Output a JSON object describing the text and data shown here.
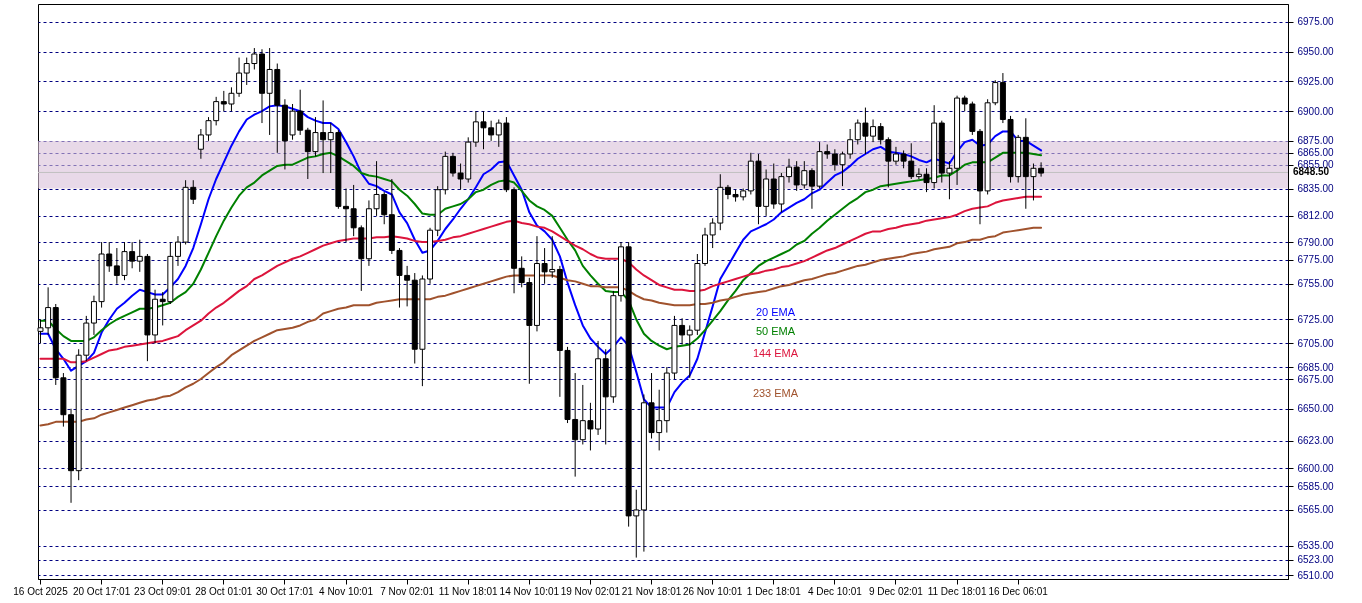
{
  "chart_data": {
    "type": "candlestick",
    "color": "#000000",
    "categories": [
      "16 Oct 2025",
      null,
      null,
      null,
      null,
      null,
      null,
      null,
      "20 Oct 17:01",
      null,
      null,
      null,
      null,
      null,
      null,
      null,
      "23 Oct 09:01",
      null,
      null,
      null,
      null,
      null,
      null,
      null,
      "28 Oct 01:01",
      null,
      null,
      null,
      null,
      null,
      null,
      null,
      "30 Oct 17:01",
      null,
      null,
      null,
      null,
      null,
      null,
      null,
      "4 Nov 10:01",
      null,
      null,
      null,
      null,
      null,
      null,
      null,
      "7 Nov 02:01",
      null,
      null,
      null,
      null,
      null,
      null,
      null,
      "11 Nov 18:01",
      null,
      null,
      null,
      null,
      null,
      null,
      null,
      "14 Nov 10:01",
      null,
      null,
      null,
      null,
      null,
      null,
      null,
      "19 Nov 02:01",
      null,
      null,
      null,
      null,
      null,
      null,
      null,
      "21 Nov 18:01",
      null,
      null,
      null,
      null,
      null,
      null,
      null,
      "26 Nov 10:01",
      null,
      null,
      null,
      null,
      null,
      null,
      null,
      "1 Dec 18:01",
      null,
      null,
      null,
      null,
      null,
      null,
      null,
      "4 Dec 10:01",
      null,
      null,
      null,
      null,
      null,
      null,
      null,
      "9 Dec 02:01",
      null,
      null,
      null,
      null,
      null,
      null,
      null,
      "11 Dec 18:01",
      null,
      null,
      null,
      null,
      null,
      null,
      null,
      "16 Dec 06:01",
      null,
      null,
      null,
      null,
      null,
      null,
      null,
      null,
      null,
      null,
      null,
      null,
      null,
      null,
      null,
      null,
      null,
      null,
      null,
      null,
      null,
      null,
      null,
      null,
      null,
      null,
      null,
      null,
      null,
      null,
      null,
      null,
      null,
      null,
      null
    ],
    "ohlc": [
      [
        6715,
        6725,
        6705,
        6718
      ],
      [
        6718,
        6752,
        6712,
        6735
      ],
      [
        6735,
        6738,
        6670,
        6676
      ],
      [
        6676,
        6680,
        6635,
        6645
      ],
      [
        6645,
        6650,
        6571,
        6598
      ],
      [
        6598,
        6700,
        6590,
        6695
      ],
      [
        6695,
        6728,
        6690,
        6722
      ],
      [
        6722,
        6745,
        6712,
        6740
      ],
      [
        6740,
        6790,
        6735,
        6780
      ],
      [
        6780,
        6790,
        6765,
        6770
      ],
      [
        6770,
        6785,
        6755,
        6762
      ],
      [
        6762,
        6790,
        6758,
        6782
      ],
      [
        6782,
        6790,
        6768,
        6774
      ],
      [
        6774,
        6792,
        6765,
        6778
      ],
      [
        6778,
        6780,
        6690,
        6712
      ],
      [
        6712,
        6750,
        6705,
        6742
      ],
      [
        6742,
        6748,
        6720,
        6740
      ],
      [
        6740,
        6790,
        6738,
        6778
      ],
      [
        6778,
        6795,
        6770,
        6790
      ],
      [
        6790,
        6842,
        6788,
        6836
      ],
      [
        6836,
        6842,
        6822,
        6826
      ],
      [
        6868,
        6885,
        6860,
        6880
      ],
      [
        6880,
        6895,
        6875,
        6892
      ],
      [
        6892,
        6912,
        6888,
        6908
      ],
      [
        6908,
        6917,
        6900,
        6906
      ],
      [
        6906,
        6920,
        6900,
        6915
      ],
      [
        6915,
        6945,
        6912,
        6932
      ],
      [
        6932,
        6945,
        6922,
        6940
      ],
      [
        6940,
        6953,
        6935,
        6948
      ],
      [
        6948,
        6952,
        6890,
        6915
      ],
      [
        6915,
        6953,
        6880,
        6935
      ],
      [
        6935,
        6940,
        6865,
        6905
      ],
      [
        6905,
        6910,
        6851,
        6875
      ],
      [
        6880,
        6906,
        6876,
        6900
      ],
      [
        6900,
        6918,
        6880,
        6884
      ],
      [
        6884,
        6886,
        6843,
        6866
      ],
      [
        6866,
        6895,
        6862,
        6882
      ],
      [
        6882,
        6909,
        6848,
        6876
      ],
      [
        6876,
        6890,
        6848,
        6882
      ],
      [
        6882,
        6884,
        6818,
        6820
      ],
      [
        6820,
        6835,
        6790,
        6818
      ],
      [
        6818,
        6838,
        6795,
        6802
      ],
      [
        6802,
        6804,
        6749,
        6776
      ],
      [
        6776,
        6825,
        6770,
        6818
      ],
      [
        6818,
        6858,
        6812,
        6830
      ],
      [
        6830,
        6832,
        6805,
        6813
      ],
      [
        6813,
        6843,
        6780,
        6783
      ],
      [
        6783,
        6785,
        6735,
        6762
      ],
      [
        6762,
        6770,
        6736,
        6758
      ],
      [
        6758,
        6764,
        6688,
        6700
      ],
      [
        6700,
        6762,
        6669,
        6759
      ],
      [
        6759,
        6802,
        6755,
        6800
      ],
      [
        6800,
        6837,
        6795,
        6834
      ],
      [
        6834,
        6866,
        6830,
        6862
      ],
      [
        6862,
        6865,
        6845,
        6848
      ],
      [
        6848,
        6856,
        6834,
        6843
      ],
      [
        6843,
        6878,
        6840,
        6874
      ],
      [
        6874,
        6900,
        6870,
        6891
      ],
      [
        6891,
        6900,
        6868,
        6886
      ],
      [
        6886,
        6892,
        6875,
        6880
      ],
      [
        6880,
        6893,
        6870,
        6890
      ],
      [
        6890,
        6895,
        6832,
        6834
      ],
      [
        6834,
        6836,
        6747,
        6768
      ],
      [
        6768,
        6778,
        6752,
        6756
      ],
      [
        6756,
        6760,
        6671,
        6720
      ],
      [
        6720,
        6795,
        6715,
        6772
      ],
      [
        6772,
        6785,
        6755,
        6765
      ],
      [
        6765,
        6795,
        6760,
        6767
      ],
      [
        6767,
        6770,
        6660,
        6699
      ],
      [
        6699,
        6702,
        6638,
        6641
      ],
      [
        6641,
        6680,
        6593,
        6624
      ],
      [
        6624,
        6670,
        6620,
        6640
      ],
      [
        6640,
        6655,
        6615,
        6633
      ],
      [
        6633,
        6707,
        6628,
        6692
      ],
      [
        6692,
        6700,
        6620,
        6660
      ],
      [
        6660,
        6749,
        6655,
        6745
      ],
      [
        6745,
        6790,
        6740,
        6786
      ],
      [
        6786,
        6790,
        6551,
        6560
      ],
      [
        6560,
        6582,
        6525,
        6565
      ],
      [
        6565,
        6662,
        6530,
        6655
      ],
      [
        6655,
        6680,
        6625,
        6630
      ],
      [
        6630,
        6666,
        6615,
        6640
      ],
      [
        6640,
        6685,
        6630,
        6680
      ],
      [
        6680,
        6728,
        6675,
        6720
      ],
      [
        6720,
        6726,
        6704,
        6712
      ],
      [
        6712,
        6720,
        6676,
        6716
      ],
      [
        6716,
        6780,
        6712,
        6772
      ],
      [
        6772,
        6802,
        6770,
        6796
      ],
      [
        6796,
        6810,
        6785,
        6806
      ],
      [
        6806,
        6847,
        6800,
        6836
      ],
      [
        6836,
        6838,
        6826,
        6830
      ],
      [
        6830,
        6834,
        6824,
        6828
      ],
      [
        6828,
        6835,
        6825,
        6833
      ],
      [
        6833,
        6865,
        6830,
        6858
      ],
      [
        6858,
        6864,
        6805,
        6820
      ],
      [
        6820,
        6851,
        6812,
        6843
      ],
      [
        6843,
        6856,
        6818,
        6822
      ],
      [
        6822,
        6848,
        6815,
        6845
      ],
      [
        6845,
        6860,
        6840,
        6853
      ],
      [
        6853,
        6858,
        6833,
        6838
      ],
      [
        6838,
        6858,
        6835,
        6850
      ],
      [
        6850,
        6852,
        6818,
        6837
      ],
      [
        6837,
        6874,
        6835,
        6866
      ],
      [
        6866,
        6872,
        6860,
        6864
      ],
      [
        6864,
        6868,
        6850,
        6855
      ],
      [
        6855,
        6866,
        6837,
        6864
      ],
      [
        6864,
        6885,
        6860,
        6876
      ],
      [
        6876,
        6893,
        6872,
        6890
      ],
      [
        6890,
        6903,
        6864,
        6879
      ],
      [
        6879,
        6893,
        6874,
        6887
      ],
      [
        6887,
        6890,
        6872,
        6876
      ],
      [
        6876,
        6878,
        6836,
        6858
      ],
      [
        6858,
        6870,
        6855,
        6864
      ],
      [
        6864,
        6867,
        6852,
        6858
      ],
      [
        6858,
        6873,
        6843,
        6845
      ],
      [
        6845,
        6852,
        6843,
        6847
      ],
      [
        6847,
        6852,
        6832,
        6840
      ],
      [
        6840,
        6905,
        6835,
        6890
      ],
      [
        6890,
        6892,
        6840,
        6848
      ],
      [
        6848,
        6858,
        6826,
        6852
      ],
      [
        6852,
        6913,
        6838,
        6911
      ],
      [
        6911,
        6913,
        6900,
        6906
      ],
      [
        6906,
        6908,
        6880,
        6883
      ],
      [
        6883,
        6885,
        6805,
        6833
      ],
      [
        6833,
        6910,
        6830,
        6907
      ],
      [
        6907,
        6926,
        6905,
        6924
      ],
      [
        6924,
        6932,
        6890,
        6893
      ],
      [
        6893,
        6896,
        6840,
        6845
      ],
      [
        6845,
        6880,
        6840,
        6878
      ],
      [
        6878,
        6894,
        6818,
        6845
      ],
      [
        6845,
        6856,
        6825,
        6852
      ],
      [
        6852,
        6857,
        6845,
        6848
      ],
      null,
      null,
      null,
      null,
      null,
      null,
      null,
      null,
      null,
      null,
      null,
      null,
      null,
      null,
      null,
      null,
      null,
      null,
      null,
      null,
      null,
      null,
      null,
      null,
      null,
      null,
      null,
      null,
      null,
      null,
      null,
      null
    ],
    "series": [
      {
        "name": "20 EMA",
        "type": "line",
        "color": "#0000ff",
        "values": [
          6713,
          6713,
          6700,
          6692,
          6682,
          6686,
          6690,
          6697,
          6714,
          6725,
          6734,
          6739,
          6745,
          6750,
          6748,
          6746,
          6746,
          6752,
          6759,
          6770,
          6785,
          6805,
          6826,
          6843,
          6857,
          6871,
          6883,
          6893,
          6897,
          6900,
          6904,
          6905,
          6904,
          6902,
          6900,
          6895,
          6892,
          6890,
          6890,
          6885,
          6874,
          6862,
          6848,
          6839,
          6837,
          6833,
          6830,
          6815,
          6806,
          6792,
          6781,
          6783,
          6791,
          6801,
          6809,
          6818,
          6826,
          6836,
          6847,
          6851,
          6857,
          6858,
          6846,
          6834,
          6815,
          6804,
          6799,
          6792,
          6778,
          6756,
          6737,
          6720,
          6709,
          6702,
          6696,
          6702,
          6710,
          6703,
          6681,
          6658,
          6651,
          6651,
          6651,
          6664,
          6672,
          6678,
          6692,
          6714,
          6736,
          6759,
          6770,
          6781,
          6792,
          6799,
          6802,
          6805,
          6809,
          6815,
          6819,
          6823,
          6826,
          6831,
          6834,
          6840,
          6846,
          6849,
          6854,
          6860,
          6864,
          6868,
          6870,
          6866,
          6865,
          6864,
          6862,
          6859,
          6857,
          6860,
          6858,
          6856,
          6866,
          6874,
          6876,
          6871,
          6872,
          6879,
          6883,
          6883,
          6875,
          6875,
          6871,
          6867,
          null,
          null,
          null,
          null,
          null,
          null,
          null,
          null,
          null,
          null,
          null,
          null,
          null,
          null,
          null,
          null,
          null,
          null,
          null,
          null,
          null,
          null,
          null,
          null,
          null,
          null,
          null,
          null,
          null,
          null,
          null,
          null
        ]
      },
      {
        "name": "50 EMA",
        "type": "line",
        "color": "#008000",
        "values": [
          6724,
          6724,
          6717,
          6711,
          6707,
          6707,
          6707,
          6710,
          6716,
          6721,
          6725,
          6728,
          6731,
          6734,
          6734,
          6735,
          6737,
          6739,
          6744,
          6748,
          6755,
          6767,
          6781,
          6795,
          6808,
          6819,
          6829,
          6836,
          6840,
          6846,
          6850,
          6854,
          6855,
          6855,
          6858,
          6861,
          6862,
          6864,
          6865,
          6862,
          6858,
          6854,
          6848,
          6846,
          6845,
          6843,
          6841,
          6834,
          6829,
          6822,
          6814,
          6813,
          6813,
          6818,
          6820,
          6822,
          6826,
          6832,
          6834,
          6838,
          6841,
          6842,
          6840,
          6833,
          6825,
          6820,
          6817,
          6812,
          6802,
          6792,
          6783,
          6770,
          6762,
          6755,
          6749,
          6748,
          6748,
          6741,
          6725,
          6713,
          6707,
          6703,
          6700,
          6702,
          6703,
          6704,
          6709,
          6716,
          6724,
          6732,
          6741,
          6749,
          6758,
          6764,
          6770,
          6774,
          6777,
          6780,
          6783,
          6788,
          6791,
          6797,
          6802,
          6808,
          6813,
          6818,
          6823,
          6827,
          6832,
          6834,
          6837,
          6838,
          6839,
          6840,
          6841,
          6842,
          6843,
          6844,
          6846,
          6846,
          6850,
          6855,
          6857,
          6857,
          6857,
          6861,
          6865,
          6865,
          6865,
          6865,
          6864,
          6863,
          null,
          null,
          null,
          null,
          null,
          null,
          null,
          null,
          null,
          null,
          null,
          null,
          null,
          null,
          null,
          null,
          null,
          null,
          null,
          null,
          null,
          null,
          null,
          null,
          null,
          null,
          null,
          null,
          null,
          null,
          null,
          null
        ]
      },
      {
        "name": "144 EMA",
        "type": "line",
        "color": "#dc143c",
        "values": [
          6692,
          6692,
          6692,
          6692,
          6689,
          6689,
          6690,
          6693,
          6696,
          6699,
          6700,
          6702,
          6703,
          6704,
          6705,
          6706,
          6707,
          6709,
          6711,
          6716,
          6720,
          6724,
          6730,
          6735,
          6739,
          6744,
          6749,
          6753,
          6759,
          6762,
          6766,
          6770,
          6773,
          6776,
          6778,
          6781,
          6784,
          6787,
          6789,
          6791,
          6792,
          6793,
          6793,
          6793,
          6794,
          6794,
          6795,
          6794,
          6793,
          6791,
          6790,
          6790,
          6791,
          6792,
          6794,
          6795,
          6797,
          6799,
          6801,
          6803,
          6805,
          6807,
          6808,
          6806,
          6805,
          6803,
          6802,
          6799,
          6795,
          6791,
          6787,
          6784,
          6780,
          6777,
          6776,
          6776,
          6776,
          6773,
          6767,
          6762,
          6758,
          6754,
          6752,
          6750,
          6750,
          6749,
          6749,
          6750,
          6753,
          6755,
          6757,
          6759,
          6761,
          6763,
          6764,
          6766,
          6767,
          6769,
          6770,
          6772,
          6774,
          6777,
          6780,
          6783,
          6785,
          6788,
          6791,
          6794,
          6797,
          6799,
          6799,
          6801,
          6802,
          6804,
          6805,
          6806,
          6808,
          6809,
          6810,
          6811,
          6813,
          6816,
          6818,
          6819,
          6820,
          6823,
          6825,
          6826,
          6827,
          6828,
          6828,
          6828,
          null,
          null,
          null,
          null,
          null,
          null,
          null,
          null,
          null,
          null,
          null,
          null,
          null,
          null,
          null,
          null,
          null,
          null,
          null,
          null,
          null,
          null,
          null,
          null,
          null,
          null,
          null,
          null,
          null,
          null,
          null,
          null
        ]
      },
      {
        "name": "233 EMA",
        "type": "line",
        "color": "#a0522d",
        "values": [
          6636,
          6637,
          6639,
          6639,
          6639,
          6639,
          6641,
          6642,
          6645,
          6647,
          6649,
          6651,
          6653,
          6655,
          6657,
          6658,
          6660,
          6661,
          6664,
          6668,
          6671,
          6675,
          6680,
          6685,
          6689,
          6695,
          6699,
          6703,
          6707,
          6710,
          6713,
          6716,
          6717,
          6718,
          6720,
          6723,
          6725,
          6730,
          6732,
          6734,
          6735,
          6737,
          6737,
          6737,
          6739,
          6740,
          6741,
          6742,
          6742,
          6742,
          6742,
          6742,
          6744,
          6745,
          6747,
          6749,
          6751,
          6753,
          6755,
          6757,
          6759,
          6761,
          6762,
          6762,
          6762,
          6762,
          6762,
          6762,
          6760,
          6758,
          6757,
          6755,
          6753,
          6753,
          6752,
          6752,
          6752,
          6749,
          6745,
          6742,
          6741,
          6739,
          6738,
          6737,
          6737,
          6737,
          6738,
          6738,
          6739,
          6741,
          6742,
          6744,
          6746,
          6747,
          6748,
          6749,
          6751,
          6753,
          6754,
          6756,
          6758,
          6759,
          6761,
          6763,
          6764,
          6766,
          6768,
          6770,
          6771,
          6773,
          6775,
          6776,
          6777,
          6778,
          6780,
          6781,
          6782,
          6784,
          6785,
          6786,
          6789,
          6790,
          6792,
          6792,
          6794,
          6795,
          6798,
          6799,
          6800,
          6801,
          6802,
          6802,
          null,
          null,
          null,
          null,
          null,
          null,
          null,
          null,
          null,
          null,
          null,
          null,
          null,
          null,
          null,
          null,
          null,
          null,
          null,
          null,
          null,
          null,
          null,
          null,
          null,
          null,
          null,
          null,
          null,
          null,
          null,
          null
        ]
      }
    ],
    "ylim": [
      6507,
      6990
    ],
    "yticks": [
      {
        "value": 6975,
        "label": "6975.00"
      },
      {
        "value": 6950,
        "label": "6950.00"
      },
      {
        "value": 6925,
        "label": "6925.00"
      },
      {
        "value": 6900,
        "label": "6900.00"
      },
      {
        "value": 6875,
        "label": "6875.00"
      },
      {
        "value": 6865,
        "label": "6865.00"
      },
      {
        "value": 6855,
        "label": "6855.00"
      },
      {
        "value": 6835,
        "label": "6835.00"
      },
      {
        "value": 6812,
        "label": "6812.00"
      },
      {
        "value": 6790,
        "label": "6790.00"
      },
      {
        "value": 6775,
        "label": "6775.00"
      },
      {
        "value": 6755,
        "label": "6755.00"
      },
      {
        "value": 6725,
        "label": "6725.00"
      },
      {
        "value": 6705,
        "label": "6705.00"
      },
      {
        "value": 6685,
        "label": "6685.00"
      },
      {
        "value": 6675,
        "label": "6675.00"
      },
      {
        "value": 6650,
        "label": "6650.00"
      },
      {
        "value": 6623,
        "label": "6623.00"
      },
      {
        "value": 6600,
        "label": "6600.00"
      },
      {
        "value": 6585,
        "label": "6585.00"
      },
      {
        "value": 6565,
        "label": "6565.00"
      },
      {
        "value": 6535,
        "label": "6535.00"
      },
      {
        "value": 6523,
        "label": "6523.00"
      },
      {
        "value": 6510,
        "label": "6510.00"
      }
    ],
    "grid": "y",
    "line_style": "solid",
    "ref_lines": [
      {
        "axis": "y",
        "value": 6848.5,
        "label": "6848.50",
        "color": "#c0c0c0"
      }
    ],
    "bands": [
      {
        "axis": "y",
        "from": 6835,
        "to": 6875,
        "color": "#d8bfd8"
      }
    ]
  }
}
